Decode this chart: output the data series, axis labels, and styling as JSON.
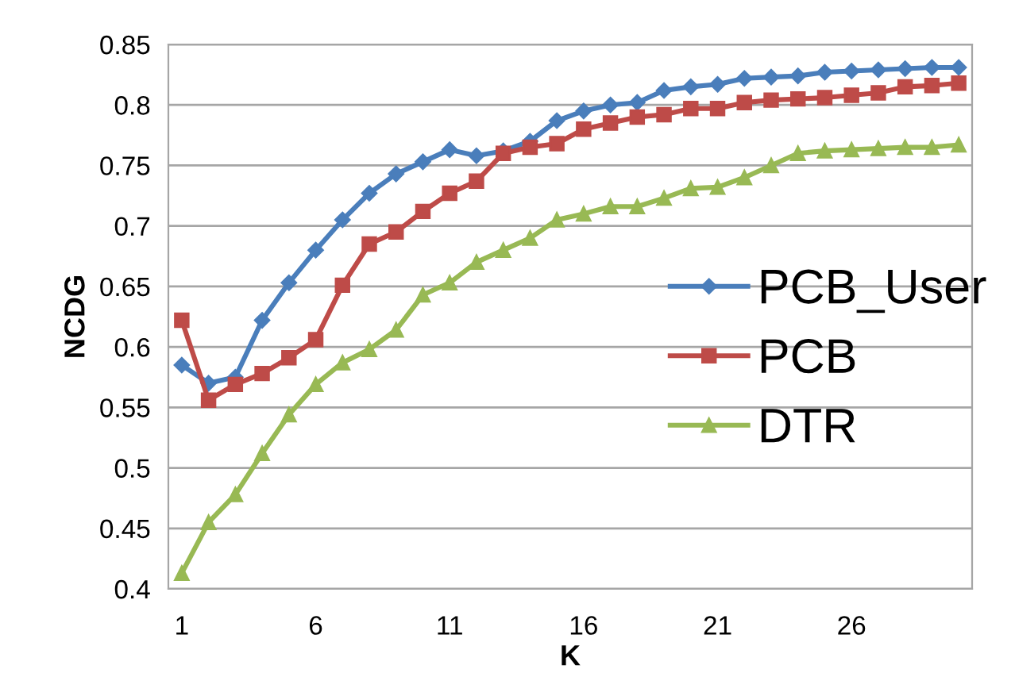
{
  "chart_data": {
    "type": "line",
    "xlabel": "K",
    "ylabel": "NCDG",
    "categories": [
      "1",
      null,
      null,
      null,
      null,
      "6",
      null,
      null,
      null,
      null,
      "11",
      null,
      null,
      null,
      null,
      "16",
      null,
      null,
      null,
      null,
      "21",
      null,
      null,
      null,
      null,
      "26",
      null,
      null,
      null,
      null
    ],
    "ylim": [
      0.4,
      0.85
    ],
    "yticks": [
      0.4,
      0.45,
      0.5,
      0.55,
      0.6,
      0.65,
      0.7,
      0.75,
      0.8,
      0.85
    ],
    "grid": "y",
    "legend": "right",
    "series": [
      {
        "name": "PCB_User",
        "color": "#4a7ebb",
        "marker": "diamond",
        "values": [
          0.585,
          0.57,
          0.575,
          0.622,
          0.653,
          0.68,
          0.705,
          0.727,
          0.743,
          0.753,
          0.763,
          0.758,
          0.762,
          0.77,
          0.787,
          0.795,
          0.8,
          0.802,
          0.812,
          0.815,
          0.817,
          0.822,
          0.823,
          0.824,
          0.827,
          0.828,
          0.829,
          0.83,
          0.831,
          0.831
        ]
      },
      {
        "name": "PCB",
        "color": "#be4b48",
        "marker": "square",
        "values": [
          0.622,
          0.556,
          0.569,
          0.578,
          0.591,
          0.606,
          0.651,
          0.685,
          0.695,
          0.712,
          0.727,
          0.737,
          0.76,
          0.765,
          0.768,
          0.78,
          0.785,
          0.79,
          0.792,
          0.797,
          0.797,
          0.802,
          0.804,
          0.805,
          0.806,
          0.808,
          0.81,
          0.815,
          0.816,
          0.818
        ]
      },
      {
        "name": "DTR",
        "color": "#98b954",
        "marker": "triangle",
        "values": [
          0.413,
          0.455,
          0.478,
          0.512,
          0.544,
          0.569,
          0.587,
          0.598,
          0.614,
          0.643,
          0.653,
          0.67,
          0.68,
          0.69,
          0.705,
          0.71,
          0.716,
          0.716,
          0.723,
          0.731,
          0.732,
          0.74,
          0.75,
          0.76,
          0.762,
          0.763,
          0.764,
          0.765,
          0.765,
          0.767
        ]
      }
    ]
  }
}
